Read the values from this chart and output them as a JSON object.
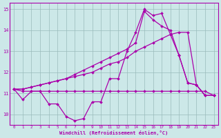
{
  "xlabel": "Windchill (Refroidissement éolien,°C)",
  "background_color": "#cce8e8",
  "line_color": "#aa00aa",
  "grid_color": "#99bbbb",
  "xlim_min": -0.5,
  "xlim_max": 23.5,
  "ylim_min": 9.5,
  "ylim_max": 15.3,
  "yticks": [
    10,
    11,
    12,
    13,
    14,
    15
  ],
  "xticks": [
    0,
    1,
    2,
    3,
    4,
    5,
    6,
    7,
    8,
    9,
    10,
    11,
    12,
    13,
    14,
    15,
    16,
    17,
    18,
    19,
    20,
    21,
    22,
    23
  ],
  "series": [
    [
      11.2,
      10.7,
      11.1,
      11.1,
      10.5,
      10.5,
      9.9,
      9.7,
      9.8,
      10.6,
      10.6,
      11.7,
      11.7,
      13.0,
      13.9,
      15.0,
      14.7,
      14.8,
      13.8,
      12.8,
      11.5,
      11.4,
      10.9,
      10.9
    ],
    [
      11.2,
      11.1,
      11.1,
      11.1,
      11.1,
      11.1,
      11.1,
      11.1,
      11.1,
      11.1,
      11.1,
      11.1,
      11.1,
      11.1,
      11.1,
      11.1,
      11.1,
      11.1,
      11.1,
      11.1,
      11.1,
      11.1,
      11.1,
      10.9
    ],
    [
      11.2,
      11.2,
      11.3,
      11.4,
      11.5,
      11.6,
      11.7,
      11.8,
      11.9,
      12.0,
      12.2,
      12.4,
      12.5,
      12.7,
      13.0,
      13.2,
      13.4,
      13.6,
      13.8,
      13.9,
      13.9,
      11.4,
      10.9,
      10.9
    ],
    [
      11.2,
      11.2,
      11.3,
      11.4,
      11.5,
      11.6,
      11.7,
      11.9,
      12.1,
      12.3,
      12.5,
      12.7,
      12.9,
      13.1,
      13.4,
      14.9,
      14.5,
      14.2,
      14.0,
      12.8,
      11.5,
      11.4,
      10.9,
      10.9
    ]
  ]
}
